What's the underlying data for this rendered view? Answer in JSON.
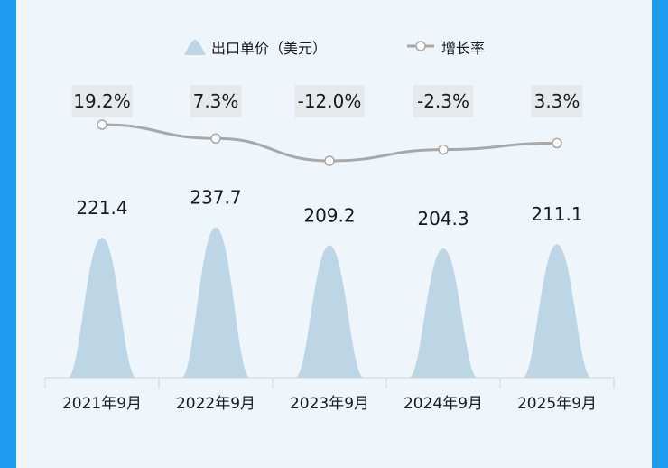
{
  "chart_data": {
    "type": "bar",
    "categories": [
      "2021年9月",
      "2022年9月",
      "2023年9月",
      "2024年9月",
      "2025年9月"
    ],
    "series": [
      {
        "name": "出口单价（美元）",
        "type": "bar",
        "shape": "bell",
        "color": "#bcd6e6",
        "values": [
          221.4,
          237.7,
          209.2,
          204.3,
          211.1
        ],
        "labels": [
          "221.4",
          "237.7",
          "209.2",
          "204.3",
          "211.1"
        ]
      },
      {
        "name": "增长率",
        "type": "line",
        "color": "#a8a8a8",
        "values": [
          19.2,
          7.3,
          -12.0,
          -2.3,
          3.3
        ],
        "labels": [
          "19.2%",
          "7.3%",
          "-12.0%",
          "-2.3%",
          "3.3%"
        ]
      }
    ],
    "legend_position": "top-center",
    "grid": false
  }
}
